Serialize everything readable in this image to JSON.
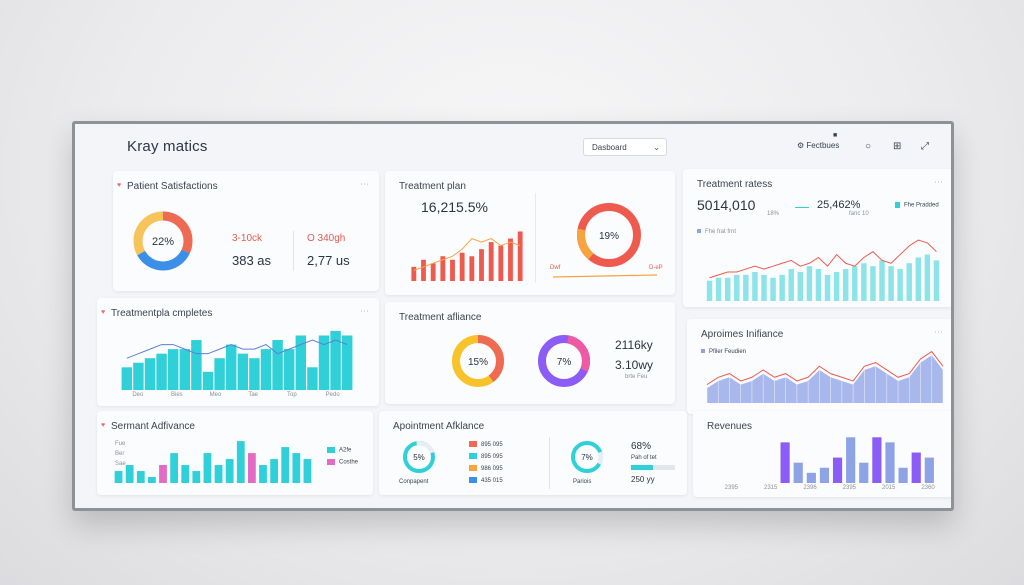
{
  "app": {
    "title": "Kray matics"
  },
  "toolbar": {
    "dropdown_value": "Dasboard",
    "features_label": "Fectbues"
  },
  "cards": {
    "satisfaction": {
      "title": "Patient Satisfactions",
      "donut_label": "22%",
      "stat1_top": "3-10ck",
      "stat1_bottom": "383 as",
      "stat2_top": "O 340gh",
      "stat2_bottom": "2,77 us"
    },
    "treatment_plan": {
      "title": "Treatment plan",
      "value": "16,215.5%",
      "donut_label": "19%",
      "left_tag": "Dwf",
      "right_tag": "D-eP"
    },
    "treatment_rates": {
      "title": "Treatment ratess",
      "value1": "5014,010",
      "value1_sub": "18%",
      "value2": "25,462%",
      "value2_sub": "fanc 10",
      "legend": "Fhe Pradded",
      "sub_legend": "Fhe frat frnt"
    },
    "completes": {
      "title": "Treatmentpla cmpletes",
      "x_labels": [
        "Deo",
        "Bies",
        "Meo",
        "Tae",
        "Top",
        "Pedo"
      ]
    },
    "affiance": {
      "title": "Treatment afliance",
      "donut1_label": "15%",
      "donut2_label": "7%",
      "stat_top": "2116ky",
      "stat_bottom": "3.10wy",
      "stat_sub": "brte Feu"
    },
    "appoimes": {
      "title": "Aproimes Inifiance",
      "legend": "Pfiler Feudien"
    },
    "sermant": {
      "title": "Sermant Adfivance",
      "legend1": "A2fe",
      "legend2": "Costhe",
      "axis_left": [
        "Fue",
        "Ber",
        "Sae"
      ]
    },
    "apointment": {
      "title": "Apointment Afklance",
      "donut1_label": "5%",
      "donut1_caption": "Conpapent",
      "rows": [
        "895 095",
        "895 095",
        "986 095",
        "435 015"
      ],
      "donut2_label": "7%",
      "donut2_caption": "Pariois",
      "stat_value": "68%",
      "stat_caption": "Pah of tet",
      "stat_bottom": "250 yy"
    },
    "revenues": {
      "title": "Revenues",
      "x_labels": [
        "2395",
        "2315",
        "2396",
        "2395",
        "2015",
        "2360"
      ]
    }
  },
  "colors": {
    "cyan": "#2fd0d8",
    "red": "#ef5a4f",
    "orange": "#f7a340",
    "purple": "#8b5cf6",
    "blue": "#3b8fe6",
    "pink": "#e46bc3",
    "lavender": "#8ea2e6"
  },
  "chart_data": [
    {
      "type": "bar",
      "title": "Treatment plan",
      "values": [
        4,
        6,
        5,
        7,
        6,
        8,
        7,
        9,
        11,
        10,
        12,
        14
      ],
      "line": [
        3,
        4,
        5,
        6,
        7,
        9,
        12,
        11,
        12,
        10,
        11,
        10
      ]
    },
    {
      "type": "bar",
      "title": "Treatment ratess",
      "values": [
        7,
        8,
        8,
        9,
        9,
        10,
        9,
        8,
        9,
        11,
        10,
        12,
        11,
        9,
        10,
        11,
        12,
        13,
        12,
        14,
        12,
        11,
        13,
        15,
        16,
        14
      ],
      "line": [
        8,
        9,
        10,
        10,
        11,
        12,
        11,
        12,
        13,
        14,
        12,
        13,
        15,
        12,
        16,
        13,
        12,
        15,
        17,
        14,
        13,
        16,
        19,
        21,
        20,
        17
      ]
    },
    {
      "type": "bar",
      "title": "Treatmentpla cmpletes",
      "values": [
        5,
        6,
        7,
        8,
        9,
        9,
        11,
        4,
        7,
        10,
        8,
        7,
        9,
        11,
        9,
        12,
        5,
        12,
        13,
        12
      ],
      "line": [
        7,
        8,
        9,
        10,
        10,
        9,
        8,
        8,
        9,
        10,
        9,
        9,
        10,
        8,
        9,
        10,
        11,
        10,
        11,
        10
      ]
    },
    {
      "type": "area",
      "title": "Aproimes Inifiance",
      "values": [
        4,
        6,
        7,
        5,
        6,
        8,
        6,
        7,
        5,
        6,
        9,
        7,
        6,
        5,
        9,
        10,
        8,
        6,
        7,
        11,
        13,
        9
      ],
      "line": [
        5,
        7,
        8,
        6,
        7,
        9,
        7,
        8,
        6,
        7,
        10,
        8,
        7,
        6,
        10,
        11,
        9,
        7,
        8,
        12,
        14,
        10
      ]
    },
    {
      "type": "bar",
      "title": "Sermant Adfivance",
      "values": [
        2,
        3,
        2,
        1,
        3,
        5,
        3,
        2,
        5,
        3,
        4,
        7,
        5,
        3,
        4,
        6,
        5,
        4
      ],
      "colors": [
        "cyan",
        "cyan",
        "cyan",
        "cyan",
        "pink",
        "cyan",
        "cyan",
        "cyan",
        "cyan",
        "cyan",
        "cyan",
        "cyan",
        "pink",
        "cyan",
        "cyan",
        "cyan",
        "cyan",
        "cyan"
      ]
    },
    {
      "type": "bar",
      "title": "Revenues",
      "values": [
        0,
        0,
        0,
        0,
        0,
        8,
        4,
        2,
        3,
        5,
        9,
        4,
        9,
        8,
        3,
        6,
        5,
        0
      ],
      "colors": [
        "lavender",
        "lavender",
        "lavender",
        "lavender",
        "lavender",
        "purple",
        "lavender",
        "lavender",
        "lavender",
        "purple",
        "lavender",
        "lavender",
        "purple",
        "lavender",
        "lavender",
        "purple",
        "lavender",
        "lavender"
      ]
    }
  ]
}
